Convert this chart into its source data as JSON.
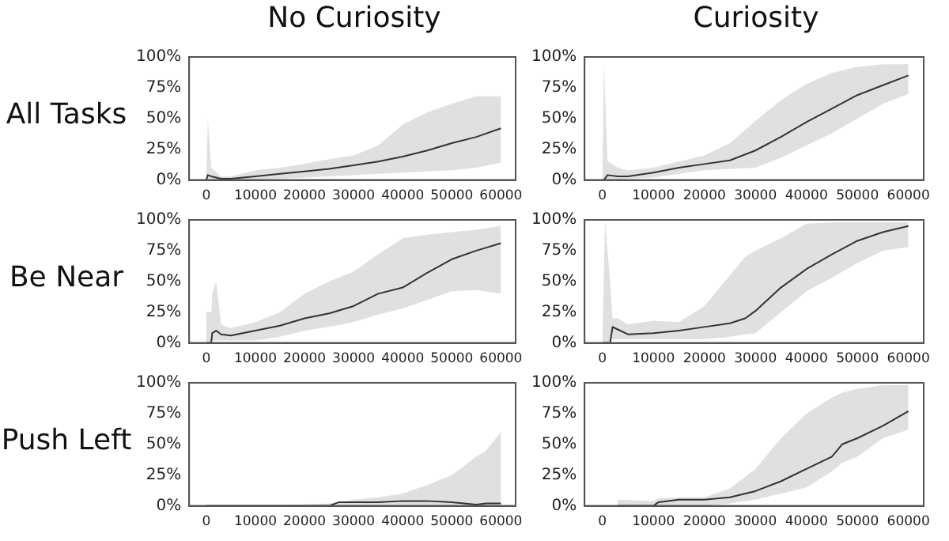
{
  "chart_data": [
    {
      "type": "line",
      "title": "No Curiosity",
      "ylabel": "All Tasks",
      "xlim": [
        -3500,
        63000
      ],
      "ylim": [
        0,
        100
      ],
      "xticks": [
        0,
        10000,
        20000,
        30000,
        40000,
        50000,
        60000
      ],
      "yticks": [
        {
          "value": 0,
          "label": "0%"
        },
        {
          "value": 25,
          "label": "25%"
        },
        {
          "value": 50,
          "label": "50%"
        },
        {
          "value": 75,
          "label": "75%"
        },
        {
          "value": 100,
          "label": "100%"
        }
      ],
      "grid": false,
      "legend": false,
      "marker": "none",
      "line_style": "solid",
      "series": [
        {
          "color": "#333333",
          "x": [
            0,
            300,
            1000,
            3000,
            5000,
            10000,
            15000,
            20000,
            25000,
            30000,
            35000,
            40000,
            45000,
            50000,
            55000,
            60000
          ],
          "values": [
            0,
            4,
            3,
            1,
            1,
            3,
            5,
            7,
            9,
            12,
            15,
            19,
            24,
            30,
            35,
            42
          ],
          "lower": [
            0,
            0,
            0,
            0,
            0,
            0,
            1,
            2,
            3,
            4,
            5,
            6,
            7,
            8,
            10,
            14
          ],
          "upper": [
            0,
            50,
            10,
            3,
            3,
            8,
            10,
            13,
            17,
            20,
            28,
            45,
            55,
            62,
            68,
            68
          ]
        }
      ]
    },
    {
      "type": "line",
      "title": "Curiosity",
      "xlim": [
        -3500,
        63000
      ],
      "ylim": [
        0,
        100
      ],
      "xticks": [
        0,
        10000,
        20000,
        30000,
        40000,
        50000,
        60000
      ],
      "yticks": [
        {
          "value": 0,
          "label": "0%"
        },
        {
          "value": 25,
          "label": "25%"
        },
        {
          "value": 50,
          "label": "50%"
        },
        {
          "value": 75,
          "label": "75%"
        },
        {
          "value": 100,
          "label": "100%"
        }
      ],
      "grid": false,
      "legend": false,
      "marker": "none",
      "line_style": "solid",
      "series": [
        {
          "color": "#333333",
          "x": [
            0,
            300,
            1000,
            3000,
            5000,
            10000,
            15000,
            20000,
            25000,
            30000,
            35000,
            40000,
            45000,
            50000,
            55000,
            60000
          ],
          "values": [
            0,
            0,
            4,
            3,
            3,
            6,
            10,
            13,
            16,
            24,
            35,
            47,
            58,
            69,
            77,
            85
          ],
          "lower": [
            0,
            0,
            0,
            0,
            1,
            2,
            5,
            8,
            9,
            10,
            18,
            28,
            38,
            50,
            62,
            70
          ],
          "upper": [
            0,
            95,
            15,
            10,
            8,
            10,
            15,
            20,
            30,
            48,
            65,
            78,
            87,
            92,
            94,
            94
          ]
        }
      ]
    },
    {
      "type": "line",
      "ylabel": "Be Near",
      "xlim": [
        -3500,
        63000
      ],
      "ylim": [
        0,
        100
      ],
      "xticks": [
        0,
        10000,
        20000,
        30000,
        40000,
        50000,
        60000
      ],
      "yticks": [
        {
          "value": 0,
          "label": "0%"
        },
        {
          "value": 25,
          "label": "25%"
        },
        {
          "value": 50,
          "label": "50%"
        },
        {
          "value": 75,
          "label": "75%"
        },
        {
          "value": 100,
          "label": "100%"
        }
      ],
      "grid": false,
      "legend": false,
      "marker": "none",
      "line_style": "solid",
      "series": [
        {
          "color": "#333333",
          "x": [
            0,
            1000,
            1200,
            2000,
            3000,
            5000,
            10000,
            15000,
            20000,
            25000,
            30000,
            35000,
            40000,
            45000,
            50000,
            55000,
            60000
          ],
          "values": [
            0,
            0,
            8,
            10,
            7,
            6,
            10,
            14,
            20,
            24,
            30,
            40,
            45,
            57,
            68,
            75,
            81
          ],
          "lower": [
            0,
            0,
            2,
            2,
            2,
            2,
            2,
            5,
            10,
            13,
            17,
            23,
            28,
            35,
            42,
            43,
            40
          ],
          "upper": [
            25,
            25,
            40,
            50,
            15,
            12,
            17,
            25,
            40,
            50,
            58,
            72,
            85,
            88,
            90,
            92,
            95
          ]
        }
      ]
    },
    {
      "type": "line",
      "xlim": [
        -3500,
        63000
      ],
      "ylim": [
        0,
        100
      ],
      "xticks": [
        0,
        10000,
        20000,
        30000,
        40000,
        50000,
        60000
      ],
      "yticks": [
        {
          "value": 0,
          "label": "0%"
        },
        {
          "value": 25,
          "label": "25%"
        },
        {
          "value": 50,
          "label": "50%"
        },
        {
          "value": 75,
          "label": "75%"
        },
        {
          "value": 100,
          "label": "100%"
        }
      ],
      "grid": false,
      "legend": false,
      "marker": "none",
      "line_style": "solid",
      "series": [
        {
          "color": "#333333",
          "x": [
            0,
            500,
            1500,
            2000,
            3000,
            5000,
            10000,
            15000,
            20000,
            25000,
            28000,
            30000,
            35000,
            40000,
            45000,
            50000,
            55000,
            60000
          ],
          "values": [
            0,
            0,
            0,
            13,
            11,
            7,
            8,
            10,
            13,
            16,
            20,
            26,
            45,
            60,
            72,
            83,
            90,
            95
          ],
          "lower": [
            0,
            0,
            0,
            3,
            3,
            3,
            3,
            3,
            3,
            5,
            7,
            8,
            25,
            42,
            53,
            65,
            75,
            78
          ],
          "upper": [
            0,
            100,
            50,
            20,
            20,
            15,
            18,
            17,
            30,
            55,
            70,
            75,
            85,
            97,
            98,
            98,
            98,
            98
          ]
        }
      ]
    },
    {
      "type": "line",
      "ylabel": "Push Left",
      "xlim": [
        -3500,
        63000
      ],
      "ylim": [
        0,
        100
      ],
      "xticks": [
        0,
        10000,
        20000,
        30000,
        40000,
        50000,
        60000
      ],
      "yticks": [
        {
          "value": 0,
          "label": "0%"
        },
        {
          "value": 25,
          "label": "25%"
        },
        {
          "value": 50,
          "label": "50%"
        },
        {
          "value": 75,
          "label": "75%"
        },
        {
          "value": 100,
          "label": "100%"
        }
      ],
      "grid": false,
      "legend": false,
      "marker": "none",
      "line_style": "solid",
      "series": [
        {
          "color": "#333333",
          "x": [
            0,
            10000,
            20000,
            25000,
            27000,
            30000,
            35000,
            40000,
            45000,
            50000,
            55000,
            57000,
            60000
          ],
          "values": [
            0,
            0,
            0,
            0,
            3,
            3,
            3,
            4,
            4,
            3,
            1,
            2,
            2
          ],
          "lower": [
            0,
            0,
            0,
            0,
            0,
            0,
            0,
            0,
            0,
            0,
            0,
            0,
            0
          ],
          "upper": [
            0,
            0,
            1,
            2,
            3,
            5,
            7,
            10,
            17,
            25,
            40,
            45,
            60
          ]
        }
      ]
    },
    {
      "type": "line",
      "xlim": [
        -3500,
        63000
      ],
      "ylim": [
        0,
        100
      ],
      "xticks": [
        0,
        10000,
        20000,
        30000,
        40000,
        50000,
        60000
      ],
      "yticks": [
        {
          "value": 0,
          "label": "0%"
        },
        {
          "value": 25,
          "label": "25%"
        },
        {
          "value": 50,
          "label": "50%"
        },
        {
          "value": 75,
          "label": "75%"
        },
        {
          "value": 100,
          "label": "100%"
        }
      ],
      "grid": false,
      "legend": false,
      "marker": "none",
      "line_style": "solid",
      "series": [
        {
          "color": "#333333",
          "x": [
            3000,
            10000,
            11000,
            15000,
            20000,
            25000,
            30000,
            35000,
            40000,
            45000,
            47000,
            50000,
            55000,
            60000
          ],
          "values": [
            0,
            0,
            3,
            5,
            5,
            7,
            12,
            20,
            30,
            40,
            50,
            55,
            65,
            77
          ],
          "lower": [
            0,
            0,
            0,
            0,
            0,
            2,
            5,
            10,
            15,
            28,
            35,
            40,
            55,
            62
          ],
          "upper": [
            5,
            4,
            6,
            7,
            7,
            14,
            30,
            55,
            75,
            88,
            92,
            95,
            98,
            98
          ]
        }
      ]
    }
  ]
}
